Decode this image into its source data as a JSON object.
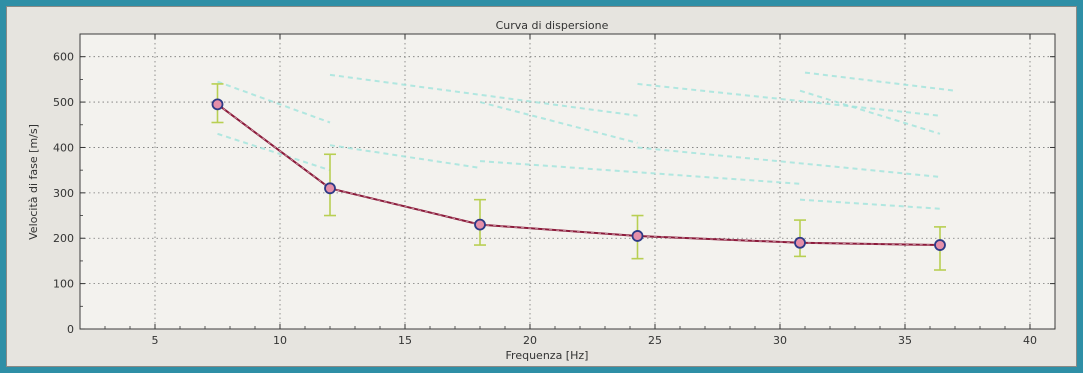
{
  "chart_data": {
    "type": "line",
    "title": "Curva di dispersione",
    "xlabel": "Frequenza [Hz]",
    "ylabel": "Velocità di fase  [m/s]",
    "xlim": [
      2,
      41
    ],
    "ylim": [
      0,
      650
    ],
    "xticks": [
      5,
      10,
      15,
      20,
      25,
      30,
      35,
      40
    ],
    "yticks": [
      0,
      100,
      200,
      300,
      400,
      500,
      600
    ],
    "grid": true,
    "series": [
      {
        "x": [
          7.5,
          12,
          18,
          24.3,
          30.8,
          36.4
        ],
        "y": [
          495,
          310,
          230,
          205,
          190,
          185
        ],
        "error_low": [
          455,
          250,
          185,
          155,
          160,
          130
        ],
        "error_high": [
          540,
          385,
          285,
          250,
          240,
          225
        ],
        "color": "#8b1a3a",
        "marker_fill": "#e58fa9",
        "marker_edge": "#2d3a86",
        "errorbar_color": "#b8cf52"
      }
    ],
    "background_modes": {
      "color": "#9fe3dc",
      "lines": [
        {
          "x": [
            7.5,
            12
          ],
          "y": [
            545,
            455
          ]
        },
        {
          "x": [
            7.5,
            12
          ],
          "y": [
            430,
            350
          ]
        },
        {
          "x": [
            12,
            24.3
          ],
          "y": [
            560,
            470
          ]
        },
        {
          "x": [
            12,
            18
          ],
          "y": [
            405,
            355
          ]
        },
        {
          "x": [
            18,
            24.3
          ],
          "y": [
            500,
            410
          ]
        },
        {
          "x": [
            18,
            30.8
          ],
          "y": [
            370,
            320
          ]
        },
        {
          "x": [
            24.3,
            36.4
          ],
          "y": [
            540,
            470
          ]
        },
        {
          "x": [
            24.3,
            36.4
          ],
          "y": [
            400,
            335
          ]
        },
        {
          "x": [
            30.8,
            36.4
          ],
          "y": [
            525,
            430
          ]
        },
        {
          "x": [
            31,
            37
          ],
          "y": [
            565,
            525
          ]
        },
        {
          "x": [
            30.8,
            36.4
          ],
          "y": [
            285,
            265
          ]
        }
      ]
    }
  }
}
